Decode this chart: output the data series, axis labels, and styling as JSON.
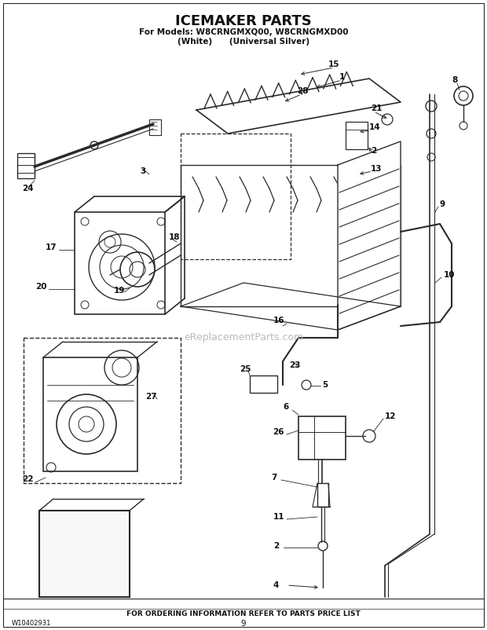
{
  "title": "ICEMAKER PARTS",
  "subtitle1": "For Models: W8CRNGMXQ00, W8CRNGMXD00",
  "subtitle2": "(White)      (Universal Silver)",
  "footer_text": "FOR ORDERING INFORMATION REFER TO PARTS PRICE LIST",
  "part_number": "W10402931",
  "page_number": "9",
  "watermark": "eReplacementParts.com",
  "bg_color": "#ffffff",
  "lc": "#2a2a2a",
  "tc": "#111111",
  "title_fs": 13,
  "sub_fs": 7.5,
  "label_fs": 7.5,
  "footer_fs": 6.5
}
